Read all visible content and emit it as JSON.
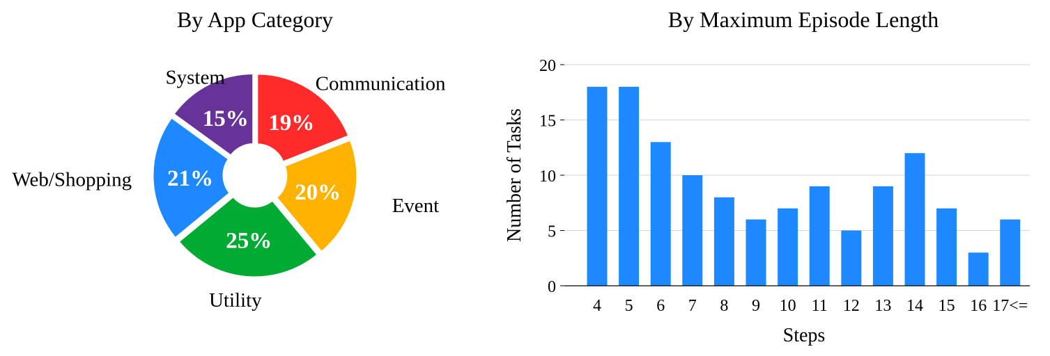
{
  "chart_data": [
    {
      "type": "pie",
      "title": "By App Category",
      "slices": [
        {
          "label": "Communication",
          "value": 19,
          "value_label": "19%",
          "color": "#FF2A2A"
        },
        {
          "label": "Event",
          "value": 20,
          "value_label": "20%",
          "color": "#FFB300"
        },
        {
          "label": "Utility",
          "value": 25,
          "value_label": "25%",
          "color": "#00AA33"
        },
        {
          "label": "Web/Shopping",
          "value": 21,
          "value_label": "21%",
          "color": "#1E88FF"
        },
        {
          "label": "System",
          "value": 15,
          "value_label": "15%",
          "color": "#673399"
        }
      ],
      "donut": true,
      "exploded": true
    },
    {
      "type": "bar",
      "title": "By Maximum Episode Length",
      "xlabel": "Steps",
      "ylabel": "Number of Tasks",
      "categories": [
        "4",
        "5",
        "6",
        "7",
        "8",
        "9",
        "10",
        "11",
        "12",
        "13",
        "14",
        "15",
        "16",
        "17<="
      ],
      "values": [
        18,
        18,
        13,
        10,
        8,
        6,
        7,
        9,
        5,
        9,
        12,
        7,
        3,
        6
      ],
      "ylim": [
        0,
        20
      ],
      "yticks": [
        0,
        5,
        10,
        15,
        20
      ],
      "grid": true,
      "color": "#1E88FF"
    }
  ]
}
